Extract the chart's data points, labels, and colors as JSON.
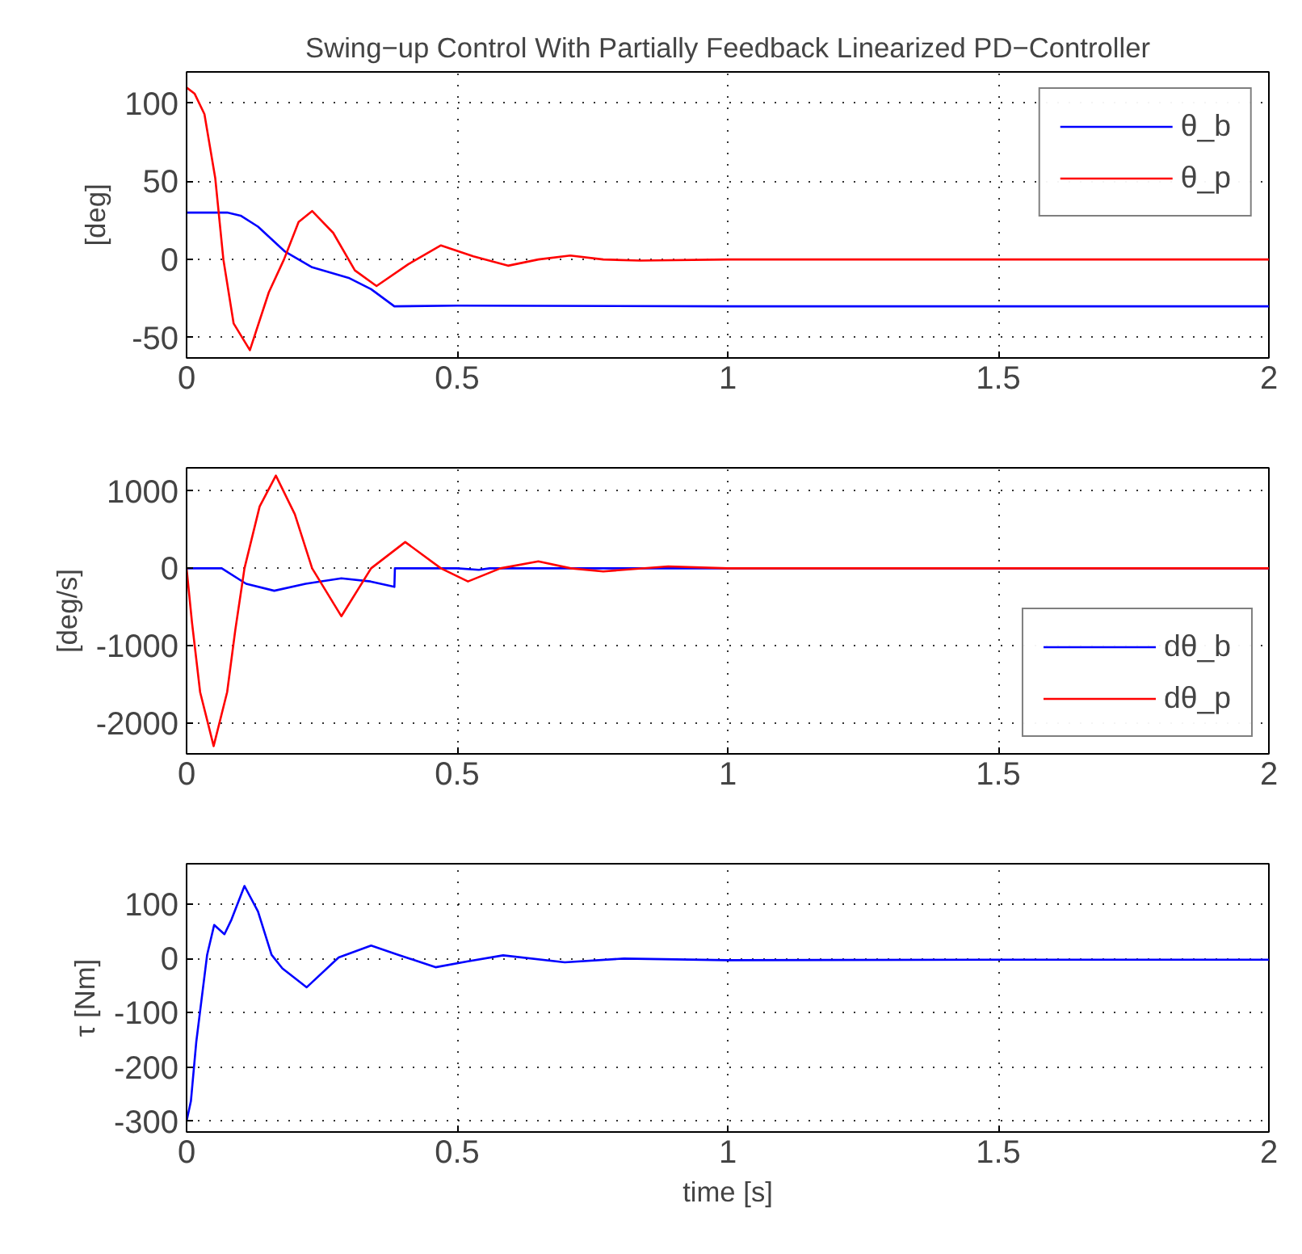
{
  "chart_data": [
    {
      "type": "line",
      "title": "Swing−up Control With Partially Feedback Linearized PD−Controller",
      "ylabel": "[deg]",
      "xlim": [
        0,
        2
      ],
      "xticks": [
        0,
        0.5,
        1,
        1.5,
        2
      ],
      "ylim": [
        -63,
        120
      ],
      "yticks": [
        -50,
        0,
        50,
        100
      ],
      "grid": true,
      "legend": "top right",
      "series": [
        {
          "name": "θ_b",
          "color": "#0000ff",
          "x": [
            0,
            0.075,
            0.1,
            0.132,
            0.182,
            0.232,
            0.301,
            0.341,
            0.384,
            0.5,
            1.0,
            1.5,
            2.0
          ],
          "values": [
            30,
            30,
            28,
            21,
            5,
            -5,
            -12,
            -19,
            -30,
            -29.5,
            -30,
            -30,
            -30
          ]
        },
        {
          "name": "θ_p",
          "color": "#ff0000",
          "x": [
            0,
            0.015,
            0.033,
            0.053,
            0.068,
            0.087,
            0.117,
            0.152,
            0.18,
            0.207,
            0.232,
            0.271,
            0.311,
            0.351,
            0.41,
            0.47,
            0.53,
            0.594,
            0.65,
            0.709,
            0.77,
            0.838,
            1.0,
            1.5,
            2.0
          ],
          "values": [
            110,
            106,
            93,
            52,
            0,
            -41,
            -58,
            -21,
            0,
            24,
            31,
            17,
            -7,
            -17,
            -3,
            9,
            2,
            -4,
            0,
            2.5,
            0,
            -0.7,
            0,
            0,
            0
          ]
        }
      ]
    },
    {
      "type": "line",
      "ylabel": "[deg/s]",
      "xlim": [
        0,
        2
      ],
      "xticks": [
        0,
        0.5,
        1,
        1.5,
        2
      ],
      "ylim": [
        -2400,
        1300
      ],
      "yticks": [
        -2000,
        -1000,
        0,
        1000
      ],
      "grid": true,
      "legend": "bottom right",
      "series": [
        {
          "name": "dθ_b",
          "color": "#0000ff",
          "x": [
            0,
            0.065,
            0.11,
            0.162,
            0.22,
            0.286,
            0.34,
            0.384,
            0.385,
            0.5,
            0.54,
            0.56,
            1.0,
            2.0
          ],
          "values": [
            0,
            0,
            -200,
            -290,
            -200,
            -130,
            -170,
            -240,
            0,
            0,
            -20,
            0,
            0,
            0
          ]
        },
        {
          "name": "dθ_p",
          "color": "#ff0000",
          "x": [
            0,
            0.01,
            0.025,
            0.05,
            0.075,
            0.09,
            0.107,
            0.135,
            0.165,
            0.2,
            0.232,
            0.286,
            0.341,
            0.404,
            0.47,
            0.52,
            0.58,
            0.65,
            0.71,
            0.77,
            0.89,
            1.0,
            2.0
          ],
          "values": [
            0,
            -700,
            -1600,
            -2300,
            -1600,
            -800,
            0,
            800,
            1200,
            700,
            0,
            -620,
            0,
            340,
            0,
            -170,
            0,
            90,
            0,
            -40,
            25,
            0,
            0
          ]
        }
      ]
    },
    {
      "type": "line",
      "xlabel": "time [s]",
      "ylabel": "τ [Nm]",
      "xlim": [
        0,
        2
      ],
      "xticks": [
        0,
        0.5,
        1,
        1.5,
        2
      ],
      "ylim": [
        -320,
        175
      ],
      "yticks": [
        -300,
        -200,
        -100,
        0,
        100
      ],
      "grid": true,
      "series": [
        {
          "color": "#0000ff",
          "x": [
            0,
            0.008,
            0.018,
            0.038,
            0.051,
            0.07,
            0.083,
            0.107,
            0.132,
            0.157,
            0.177,
            0.222,
            0.281,
            0.341,
            0.391,
            0.46,
            0.52,
            0.585,
            0.699,
            0.808,
            1.0,
            1.5,
            2.0
          ],
          "values": [
            -300,
            -263,
            -153,
            7,
            62,
            45,
            72,
            134,
            87,
            7,
            -18,
            -53,
            2,
            24,
            7,
            -16,
            -5,
            6,
            -7,
            0,
            -3,
            -2,
            -2
          ]
        }
      ]
    }
  ]
}
